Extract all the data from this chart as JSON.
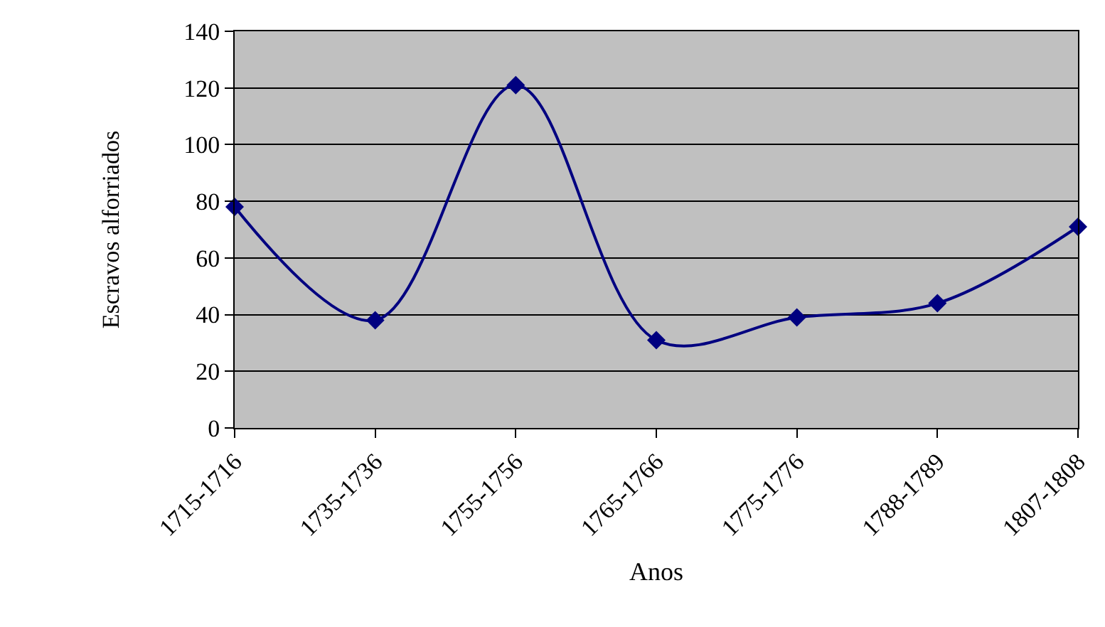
{
  "chart_data": {
    "type": "line",
    "xlabel": "Anos",
    "ylabel": "Escravos alforriados",
    "categories": [
      "1715-1716",
      "1735-1736",
      "1755-1756",
      "1765-1766",
      "1775-1776",
      "1788-1789",
      "1807-1808"
    ],
    "series": [
      {
        "color": "#000080",
        "values": [
          78,
          38,
          121,
          31,
          39,
          44,
          71
        ]
      }
    ],
    "ylim": [
      0,
      140
    ],
    "yticks": [
      0,
      20,
      40,
      60,
      80,
      100,
      120,
      140
    ],
    "grid": "y",
    "marker": "diamond",
    "line_style": "solid"
  }
}
